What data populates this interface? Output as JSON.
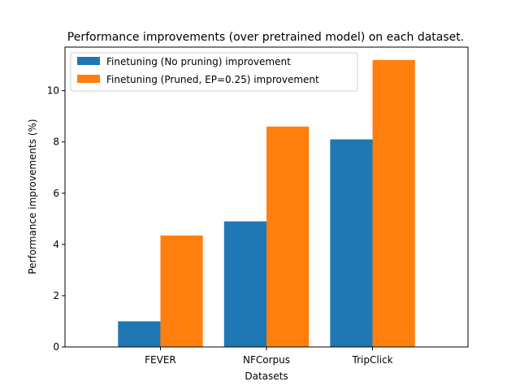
{
  "chart_data": {
    "type": "bar",
    "title": "Performance improvements (over pretrained model) on each dataset.",
    "xlabel": "Datasets",
    "ylabel": "Performance improvements (%)",
    "categories": [
      "FEVER",
      "NFCorpus",
      "TripClick"
    ],
    "ylim": [
      0,
      11.7
    ],
    "yticks": [
      0,
      2,
      4,
      6,
      8,
      10
    ],
    "grid": false,
    "legend_position": "top-left",
    "series": [
      {
        "name": "Finetuning (No pruning) improvement",
        "values": [
          1.0,
          4.9,
          8.1
        ],
        "color": "#1f77b4"
      },
      {
        "name": "Finetuning (Pruned, EP=0.25) improvement",
        "values": [
          4.35,
          8.6,
          11.2
        ],
        "color": "#ff7f0e"
      }
    ]
  }
}
